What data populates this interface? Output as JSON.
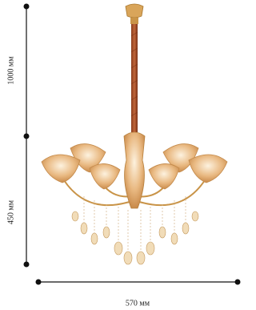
{
  "dimensions": {
    "total_height": "1000 мм",
    "body_height": "450 мм",
    "width": "570 мм"
  }
}
